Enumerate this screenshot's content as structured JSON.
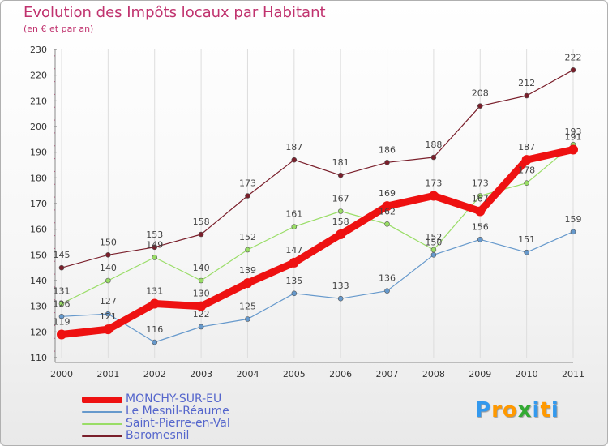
{
  "chart_data": {
    "type": "line",
    "title": "Evolution des Impôts locaux par Habitant",
    "subtitle": "(en € et par an)",
    "xlabel": "",
    "ylabel": "",
    "ylim": [
      110,
      230
    ],
    "yticks": [
      "110",
      "120",
      "130",
      "140",
      "150",
      "160",
      "170",
      "180",
      "190",
      "200",
      "210",
      "220",
      "230"
    ],
    "categories": [
      "2000",
      "2001",
      "2002",
      "2003",
      "2004",
      "2005",
      "2006",
      "2007",
      "2008",
      "2009",
      "2010",
      "2011"
    ],
    "series": [
      {
        "name": "Baromesnil",
        "color": "#7a1f2b",
        "values": [
          145,
          150,
          153,
          158,
          173,
          187,
          181,
          186,
          188,
          208,
          212,
          222
        ],
        "labels": [
          "145",
          "150",
          "153",
          "158",
          "173",
          "187",
          "181",
          "186",
          "188",
          "208",
          "212",
          "222"
        ]
      },
      {
        "name": "Saint-Pierre-en-Val",
        "color": "#99dd66",
        "values": [
          131,
          140,
          149,
          140,
          152,
          161,
          167,
          162,
          152,
          173,
          178,
          193
        ],
        "labels": [
          "131",
          "140",
          "149",
          "140",
          "152",
          "161",
          "167",
          "162",
          "152",
          "173",
          "178",
          "193"
        ]
      },
      {
        "name": "Le Mesnil-Réaume",
        "color": "#6699cc",
        "values": [
          126,
          127,
          116,
          122,
          125,
          135,
          133,
          136,
          150,
          156,
          151,
          159
        ],
        "labels": [
          "126",
          "127",
          "116",
          "122",
          "125",
          "135",
          "133",
          "136",
          "150",
          "156",
          "151",
          "159"
        ]
      },
      {
        "name": "MONCHY-SUR-EU",
        "color": "#ee1111",
        "values": [
          119,
          121,
          131,
          130,
          139,
          147,
          158,
          169,
          173,
          167,
          187,
          191
        ],
        "labels": [
          "119",
          "121",
          "131",
          "130",
          "139",
          "147",
          "158",
          "169",
          "173",
          "167",
          "187",
          "191"
        ]
      }
    ]
  },
  "legend": [
    {
      "name": "MONCHY-SUR-EU",
      "color": "#ee1111"
    },
    {
      "name": "Le Mesnil-Réaume",
      "color": "#6699cc"
    },
    {
      "name": "Saint-Pierre-en-Val",
      "color": "#99dd66"
    },
    {
      "name": "Baromesnil",
      "color": "#7a1f2b"
    }
  ],
  "logo": {
    "letters": [
      "P",
      "r",
      "o",
      "x",
      "i",
      "t",
      "i"
    ],
    "colors": [
      "#3399ee",
      "#ff9900",
      "#ff9900",
      "#33aa33",
      "#3399ee",
      "#ff9900",
      "#3399ee"
    ]
  }
}
